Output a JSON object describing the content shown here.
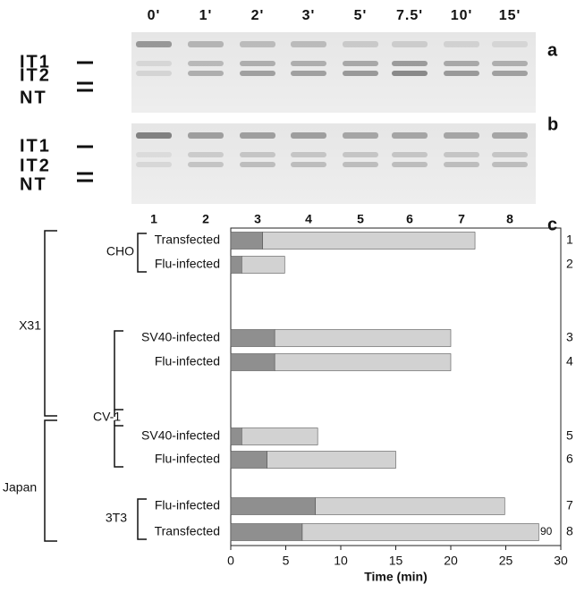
{
  "gel": {
    "lane_headers": [
      "0'",
      "1'",
      "2'",
      "3'",
      "5'",
      "7.5'",
      "10'",
      "15'"
    ],
    "lane_numbers": [
      "1",
      "2",
      "3",
      "4",
      "5",
      "6",
      "7",
      "8"
    ],
    "band_labels": [
      "IT1",
      "IT2",
      "NT"
    ],
    "panels": [
      "a",
      "b"
    ]
  },
  "chart_data": {
    "type": "bar",
    "orientation": "horizontal",
    "stacked": true,
    "panel": "c",
    "categories": [
      "Transfected",
      "Flu-infected",
      "SV40-infected",
      "Flu-infected",
      "SV40-infected",
      "Flu-infected",
      "Flu-infected",
      "Transfected"
    ],
    "row_numbers": [
      "1",
      "2",
      "3",
      "4",
      "5",
      "6",
      "7",
      "8"
    ],
    "cell_labels": [
      "CHO",
      "CV-1",
      "3T3"
    ],
    "virus_labels": [
      "X31",
      "Japan"
    ],
    "annotation": "90",
    "series": [
      {
        "color": "#8f8f8f",
        "values": [
          2.9,
          1,
          4,
          4,
          1,
          3.3,
          7.7,
          6.5
        ]
      },
      {
        "color": "#d2d2d2",
        "values": [
          19.3,
          3.9,
          16,
          16,
          6.9,
          11.7,
          17.2,
          21.5
        ]
      }
    ],
    "xlabel": "Time (min)",
    "xlim": [
      0,
      30
    ],
    "xticks": [
      0,
      5,
      10,
      15,
      20,
      25,
      30
    ]
  }
}
